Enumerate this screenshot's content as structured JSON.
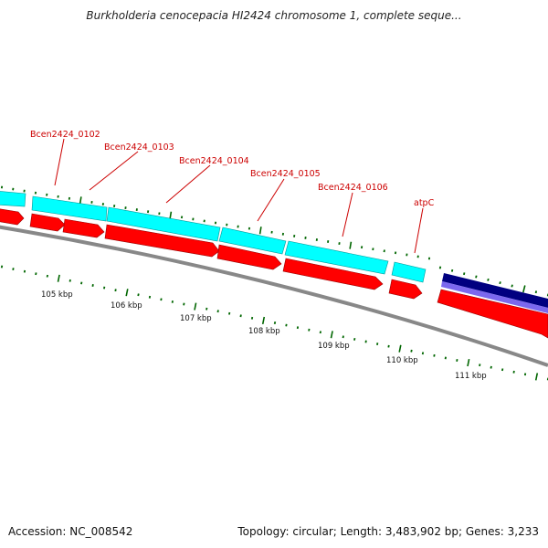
{
  "title": "Burkholderia cenocepacia HI2424 chromosome 1, complete seque...",
  "footer": {
    "accession": "Accession: NC_008542",
    "summary": "Topology: circular; Length: 3,483,902 bp; Genes: 3,233"
  },
  "colors": {
    "feature_reverse": "#00ffff",
    "feature_forward": "#ff0000",
    "rna_feature": "#000080",
    "rna_feature_light": "#7b68ee",
    "backbone": "#888888",
    "tick": "#006600",
    "label": "#cc0000"
  },
  "gene_labels": [
    "Bcen2424_0102",
    "Bcen2424_0103",
    "Bcen2424_0104",
    "Bcen2424_0105",
    "Bcen2424_0106",
    "atpC"
  ],
  "kbp_labels": [
    "105 kbp",
    "106 kbp",
    "107 kbp",
    "108 kbp",
    "109 kbp",
    "110 kbp",
    "111 kbp"
  ]
}
